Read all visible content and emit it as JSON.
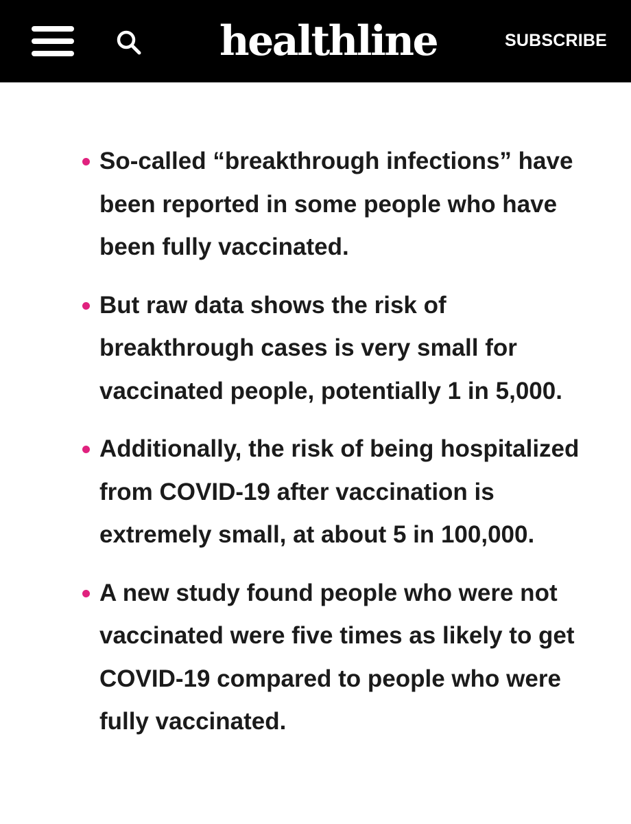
{
  "header": {
    "logo_text": "healthline",
    "subscribe_label": "SUBSCRIBE",
    "menu_icon": "hamburger-menu-icon",
    "search_icon": "search-icon",
    "background_color": "#000000",
    "text_color": "#ffffff"
  },
  "article": {
    "bullet_color": "#e0217e",
    "bullets": [
      "So-called “breakthrough infections” have been reported in some people who have been fully vaccinated.",
      "But raw data shows the risk of breakthrough cases is very small for vaccinated people, potentially 1 in 5,000.",
      "Additionally, the risk of being hospitalized from COVID-19 after vaccination is extremely small, at about 5 in 100,000.",
      "A new study found people who were not vaccinated were five times as likely to get COVID-19 compared to people who were fully vaccinated."
    ]
  }
}
